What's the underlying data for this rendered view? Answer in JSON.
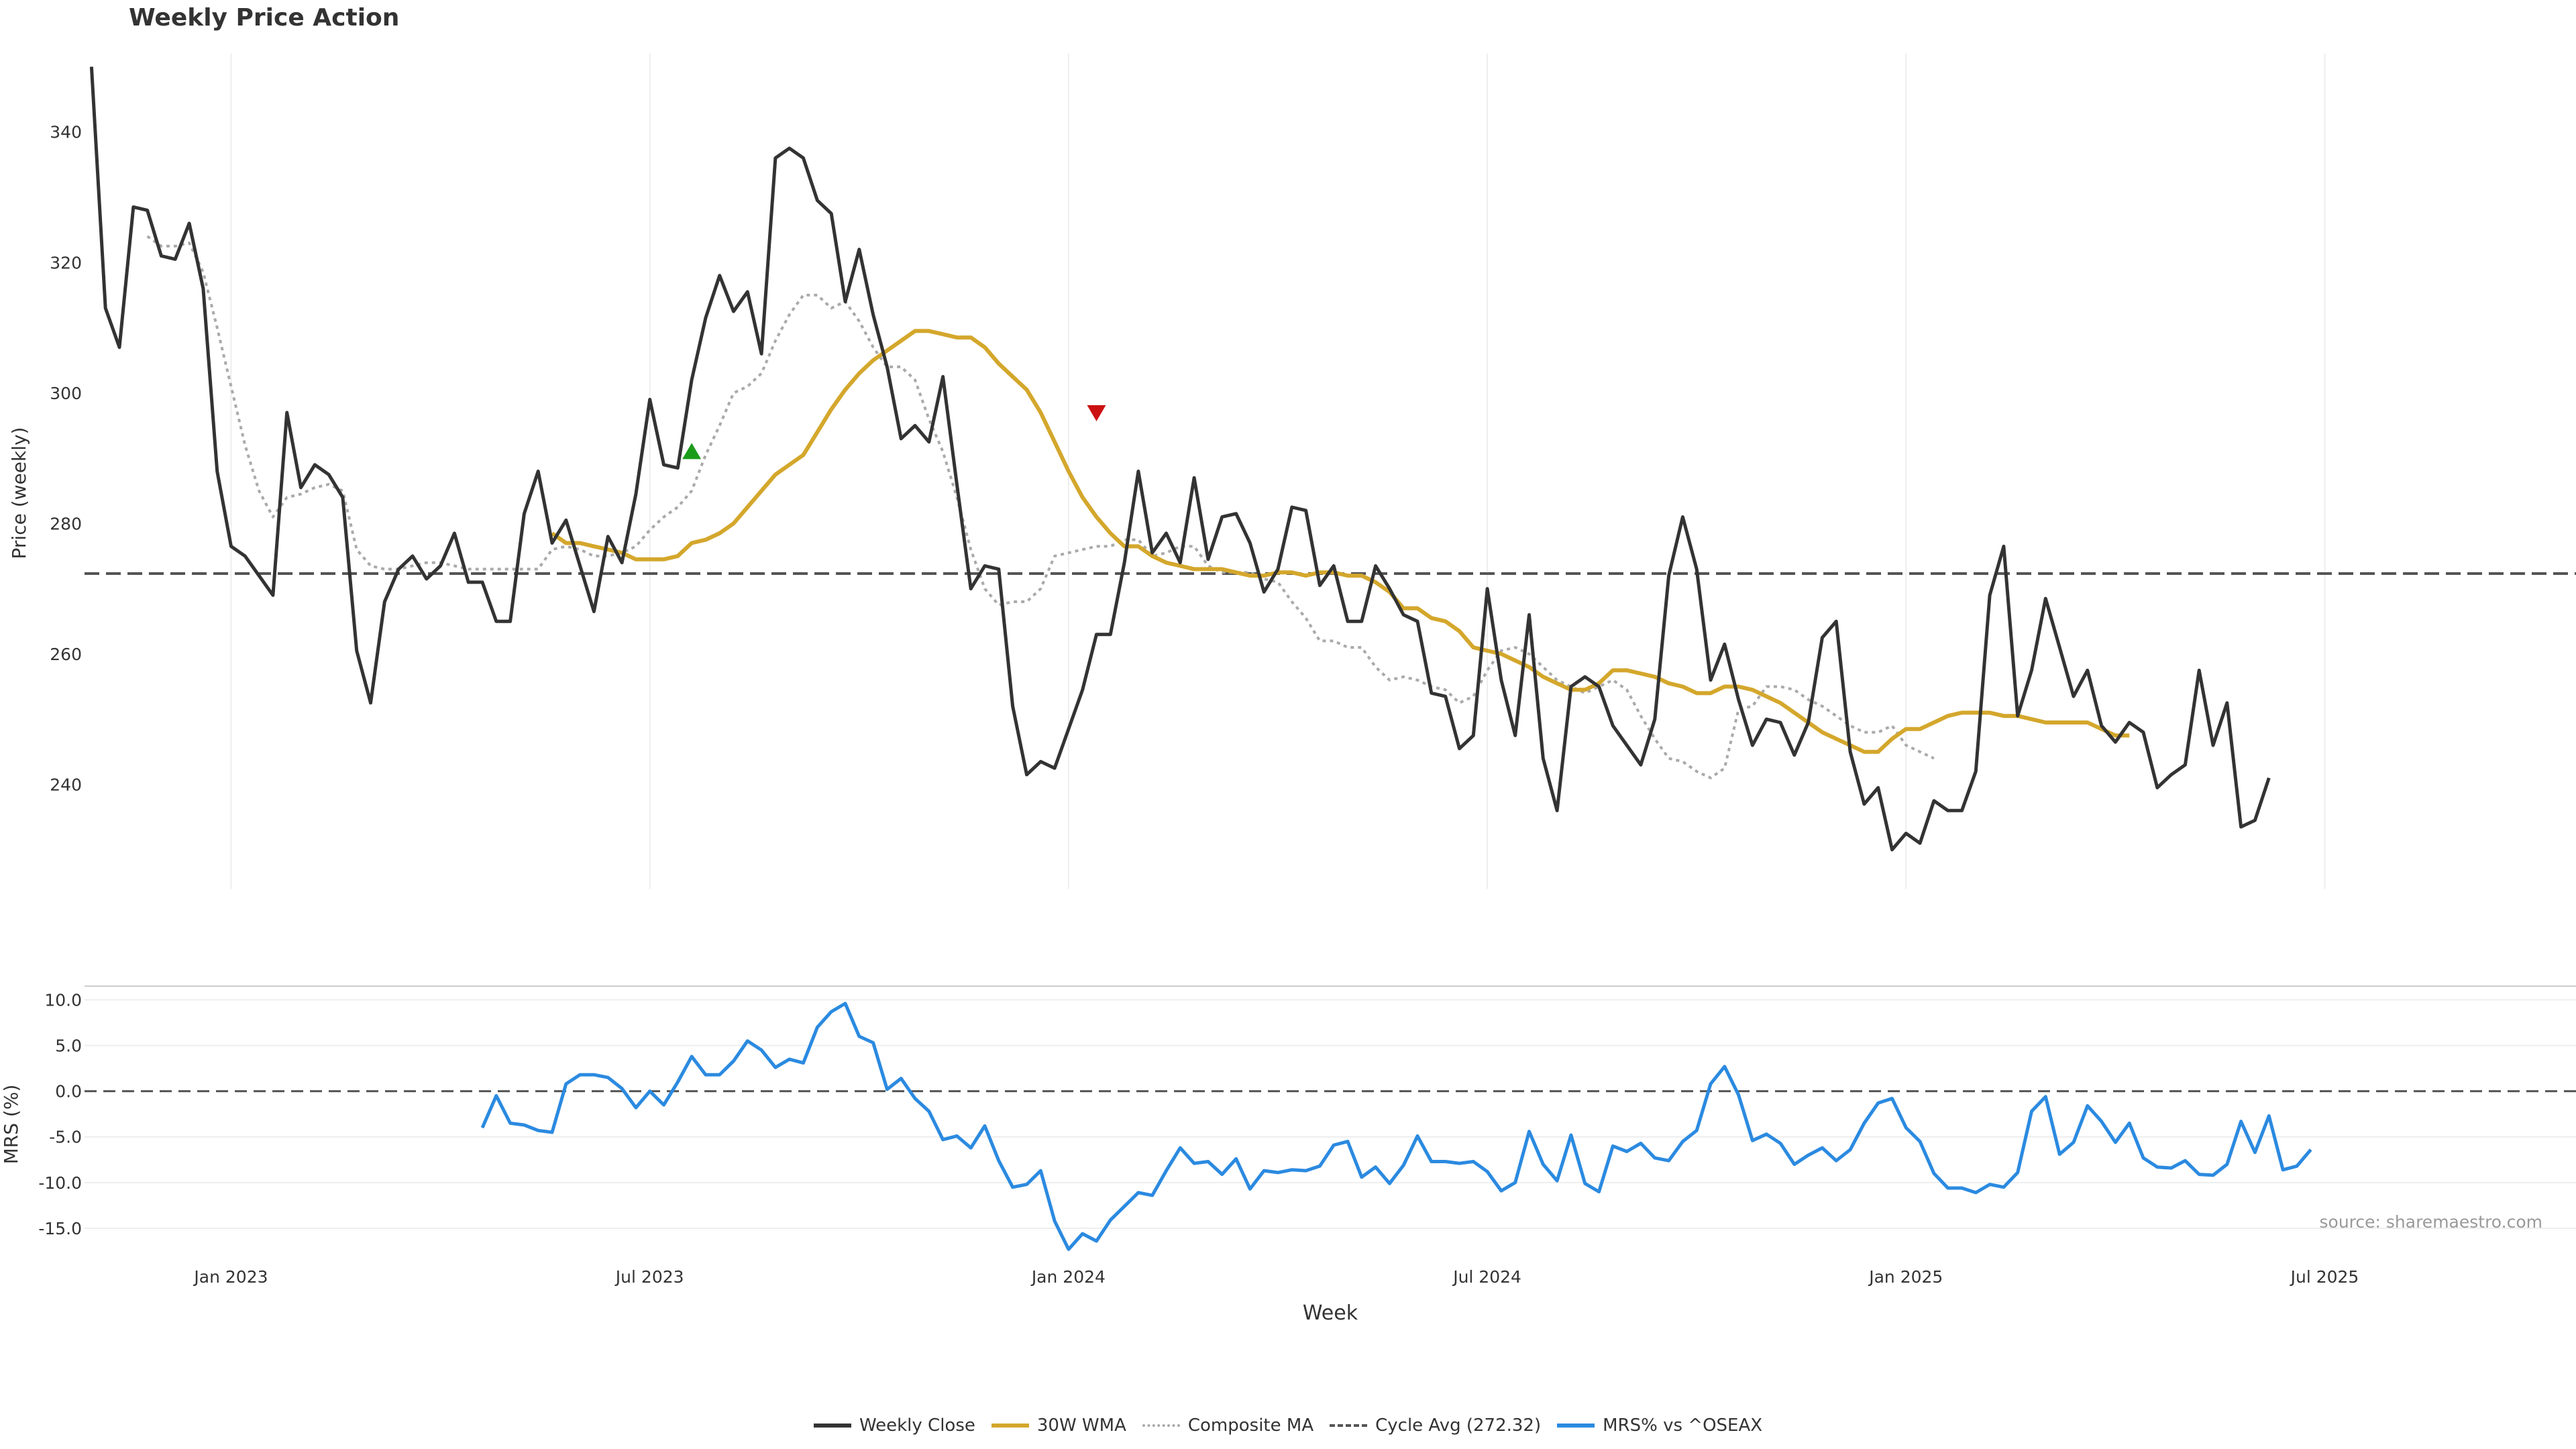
{
  "chart_title": "Weekly Price Action",
  "source_text": "source: sharemaestro.com",
  "colors": {
    "close": "#333333",
    "wma": "#d4a72c",
    "composite": "#aaaaaa",
    "cycle": "#555555",
    "mrs": "#2b8ae0",
    "buy_marker": "#1a9c1a",
    "sell_marker": "#cc1111",
    "grid": "#eeeeee"
  },
  "legend": [
    {
      "label": "Weekly Close",
      "key": "close"
    },
    {
      "label": "30W WMA",
      "key": "wma"
    },
    {
      "label": "Composite MA",
      "key": "composite"
    },
    {
      "label": "Cycle Avg (272.32)",
      "key": "cycle"
    },
    {
      "label": "MRS% vs ^OSEAX",
      "key": "mrs"
    }
  ],
  "chart_data": {
    "type": "line",
    "title": "Weekly Price Action",
    "xlabel": "Week",
    "x_tick_labels": [
      "Jan 2023",
      "Jul 2023",
      "Jan 2024",
      "Jul 2024",
      "Jan 2025",
      "Jul 2025"
    ],
    "x_tick_weeks": [
      10,
      40,
      70,
      100,
      130,
      160
    ],
    "x_range": [
      -0.5,
      178
    ],
    "price_panel": {
      "ylabel": "Price (weekly)",
      "ylim": [
        224,
        352
      ],
      "yticks": [
        240,
        260,
        280,
        300,
        320,
        340
      ],
      "cycle_avg": 272.32,
      "close_start_week": 0,
      "close": [
        350,
        313,
        307,
        328.5,
        328,
        321,
        320.5,
        326,
        316,
        288,
        276.5,
        275,
        272,
        269,
        297,
        285.5,
        289,
        287.5,
        284,
        260.5,
        252.5,
        268,
        273,
        275,
        271.5,
        273.5,
        278.5,
        271,
        271,
        265,
        265,
        281.5,
        288,
        277,
        280.5,
        273.5,
        266.5,
        278,
        274,
        284.5,
        299,
        289,
        288.5,
        302,
        311.5,
        318,
        312.5,
        315.5,
        306,
        336,
        337.5,
        336,
        329.5,
        327.5,
        314,
        322,
        312,
        304,
        293,
        295,
        292.5,
        302.5,
        286,
        270,
        273.5,
        273,
        252,
        241.5,
        243.5,
        242.5,
        248.5,
        254.5,
        263,
        263,
        274,
        288,
        275.5,
        278.5,
        274,
        287,
        274.5,
        281,
        281.5,
        277,
        269.5,
        273,
        282.5,
        282,
        270.5,
        273.5,
        265,
        265,
        273.5,
        270,
        266,
        265,
        254,
        253.5,
        245.5,
        247.5,
        270,
        256,
        247.5,
        266,
        244,
        236,
        255,
        256.5,
        255,
        249,
        246,
        243,
        250,
        272,
        281,
        273,
        256,
        261.5,
        253,
        246,
        250,
        249.5,
        244.5,
        249.5,
        262.5,
        265,
        245,
        237,
        239.5,
        230,
        232.5,
        231,
        237.5,
        236,
        236,
        242,
        269,
        276.5,
        250.5,
        257.5,
        268.5,
        261,
        253.5,
        257.5,
        249,
        246.5,
        249.5,
        248,
        239.5,
        241.5,
        243,
        257.5,
        246,
        252.5,
        233.5,
        234.5,
        241
      ],
      "wma_start_week": 33,
      "wma": [
        278.5,
        277,
        277,
        276.5,
        276,
        275.5,
        274.5,
        274.5,
        274.5,
        275,
        277,
        277.5,
        278.5,
        280,
        282.5,
        285,
        287.5,
        289,
        290.5,
        294,
        297.5,
        300.5,
        303,
        305,
        306.5,
        308,
        309.5,
        309.5,
        309,
        308.5,
        308.5,
        307,
        304.5,
        302.5,
        300.5,
        297,
        292.5,
        288,
        284,
        281,
        278.5,
        276.5,
        276.5,
        275,
        274,
        273.5,
        273,
        273,
        273,
        272.5,
        272,
        272,
        272.5,
        272.5,
        272,
        272.5,
        272.5,
        272,
        272,
        271,
        269.5,
        267,
        267,
        265.5,
        265,
        263.5,
        261,
        260.5,
        260,
        259,
        258,
        256.5,
        255.5,
        254.5,
        254.5,
        255.5,
        257.5,
        257.5,
        257,
        256.5,
        255.5,
        255,
        254,
        254,
        255,
        255,
        254.5,
        253.5,
        252.5,
        251,
        249.5,
        248,
        247,
        246,
        245,
        245,
        247,
        248.5,
        248.5,
        249.5,
        250.5,
        251,
        251,
        251,
        250.5,
        250.5,
        250,
        249.5,
        249.5,
        249.5,
        249.5,
        248.5,
        247.5,
        247.5
      ],
      "composite_start_week": 4,
      "composite": [
        324,
        322.5,
        322.5,
        323,
        318.5,
        310,
        301,
        292,
        285,
        281,
        284,
        284.5,
        285.5,
        286,
        285,
        276,
        273.5,
        273,
        273,
        273.5,
        274,
        274,
        273.5,
        273,
        273,
        273,
        273,
        273,
        273,
        276,
        276.5,
        276,
        275,
        275,
        275.5,
        276.5,
        279,
        281,
        282.5,
        285,
        290.5,
        295,
        300,
        301,
        303,
        308,
        312,
        315,
        315,
        313,
        314,
        311,
        307,
        304,
        304,
        302,
        296,
        291,
        284,
        276,
        270,
        267.5,
        268,
        268,
        270,
        275,
        275.5,
        276,
        276.5,
        276.5,
        277.5,
        277.5,
        275,
        275.5,
        276.5,
        276.5,
        273.5,
        272.5,
        272.5,
        272.5,
        271.5,
        271,
        268,
        265.5,
        262,
        262,
        261,
        261,
        258,
        256,
        256.5,
        256,
        255,
        254.5,
        252.5,
        253.5,
        257.5,
        260.5,
        261,
        260,
        258,
        256,
        255,
        254,
        255,
        256,
        254.5,
        250.5,
        247,
        244,
        243.5,
        242,
        241,
        242.5,
        251.5,
        252,
        255,
        255,
        254.5,
        253,
        252,
        250.5,
        249,
        248,
        248,
        249,
        246,
        245,
        244
      ]
    },
    "mrs_panel": {
      "ylabel": "MRS (%)",
      "ylim": [
        -17.5,
        11.5
      ],
      "yticks": [
        -15,
        -10,
        -5,
        0,
        5,
        10
      ],
      "ytick_labels": [
        "-15.0",
        "-10.0",
        "-5.0",
        "0.0",
        "5.0",
        "10.0"
      ],
      "zero_line": 0,
      "mrs_start_week": 28,
      "mrs": [
        -4,
        -0.5,
        -3.5,
        -3.7,
        -4.3,
        -4.5,
        0.8,
        1.8,
        1.8,
        1.5,
        0.3,
        -1.8,
        0,
        -1.5,
        1,
        3.8,
        1.8,
        1.8,
        3.3,
        5.5,
        4.5,
        2.6,
        3.5,
        3.1,
        7,
        8.7,
        9.6,
        6,
        5.3,
        0.2,
        1.4,
        -0.8,
        -2.2,
        -5.3,
        -4.9,
        -6.2,
        -3.8,
        -7.6,
        -10.5,
        -10.2,
        -8.7,
        -14.2,
        -17.3,
        -15.6,
        -16.4,
        -14.1,
        -12.6,
        -11.1,
        -11.4,
        -8.7,
        -6.2,
        -7.9,
        -7.7,
        -9.1,
        -7.4,
        -10.7,
        -8.7,
        -8.9,
        -8.6,
        -8.7,
        -8.2,
        -5.9,
        -5.5,
        -9.4,
        -8.3,
        -10.1,
        -8.1,
        -4.9,
        -7.7,
        -7.7,
        -7.9,
        -7.7,
        -8.8,
        -10.9,
        -10,
        -4.4,
        -8,
        -9.8,
        -4.8,
        -10.1,
        -11,
        -6,
        -6.6,
        -5.7,
        -7.3,
        -7.6,
        -5.5,
        -4.3,
        0.8,
        2.7,
        -0.4,
        -5.4,
        -4.7,
        -5.7,
        -8,
        -7,
        -6.2,
        -7.6,
        -6.4,
        -3.5,
        -1.3,
        -0.8,
        -4,
        -5.5,
        -9,
        -10.6,
        -10.6,
        -11.1,
        -10.2,
        -10.5,
        -8.9,
        -2.2,
        -0.6,
        -6.9,
        -5.6,
        -1.6,
        -3.3,
        -5.6,
        -3.5,
        -7.3,
        -8.3,
        -8.4,
        -7.6,
        -9.1,
        -9.2,
        -8,
        -3.3,
        -6.7,
        -2.7,
        -8.6,
        -8.2,
        -6.4
      ]
    },
    "signals": [
      {
        "type": "buy",
        "week": 43,
        "value": 291
      },
      {
        "type": "sell",
        "week": 72,
        "value": 297
      }
    ]
  }
}
